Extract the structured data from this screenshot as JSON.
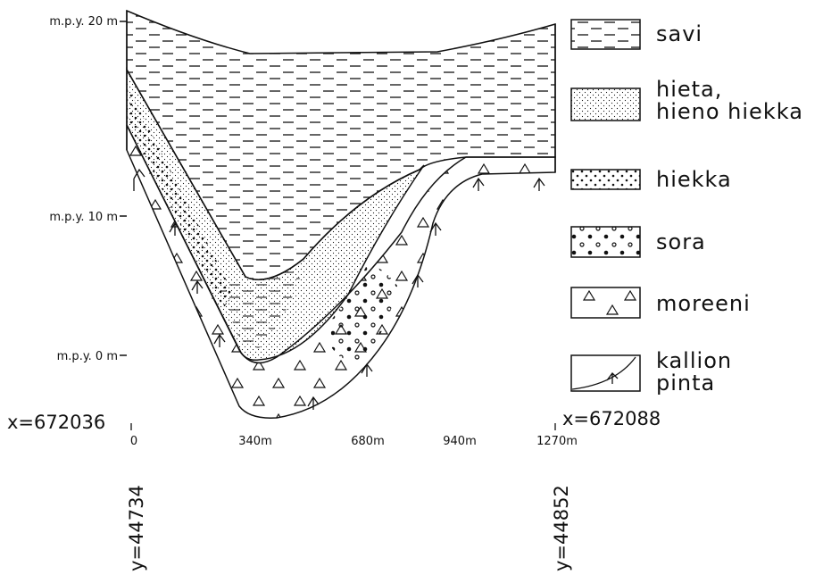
{
  "axis": {
    "y_labels": [
      "m.p.y. 20 m",
      "m.p.y. 10 m",
      "m.p.y. 0 m"
    ],
    "x_labels": [
      "0",
      "340m",
      "680m",
      "940m",
      "1270m"
    ]
  },
  "coordinates": {
    "left_x": "x=672036",
    "right_x": "x=672088",
    "left_y": "y=44734",
    "right_y": "y=44852"
  },
  "legend": [
    {
      "lines": [
        "savi"
      ]
    },
    {
      "lines": [
        "hieta,",
        "hieno hiekka"
      ]
    },
    {
      "lines": [
        "hiekka"
      ]
    },
    {
      "lines": [
        "sora"
      ]
    },
    {
      "lines": [
        "moreeni"
      ]
    },
    {
      "lines": [
        "kallion",
        "pinta"
      ]
    }
  ]
}
